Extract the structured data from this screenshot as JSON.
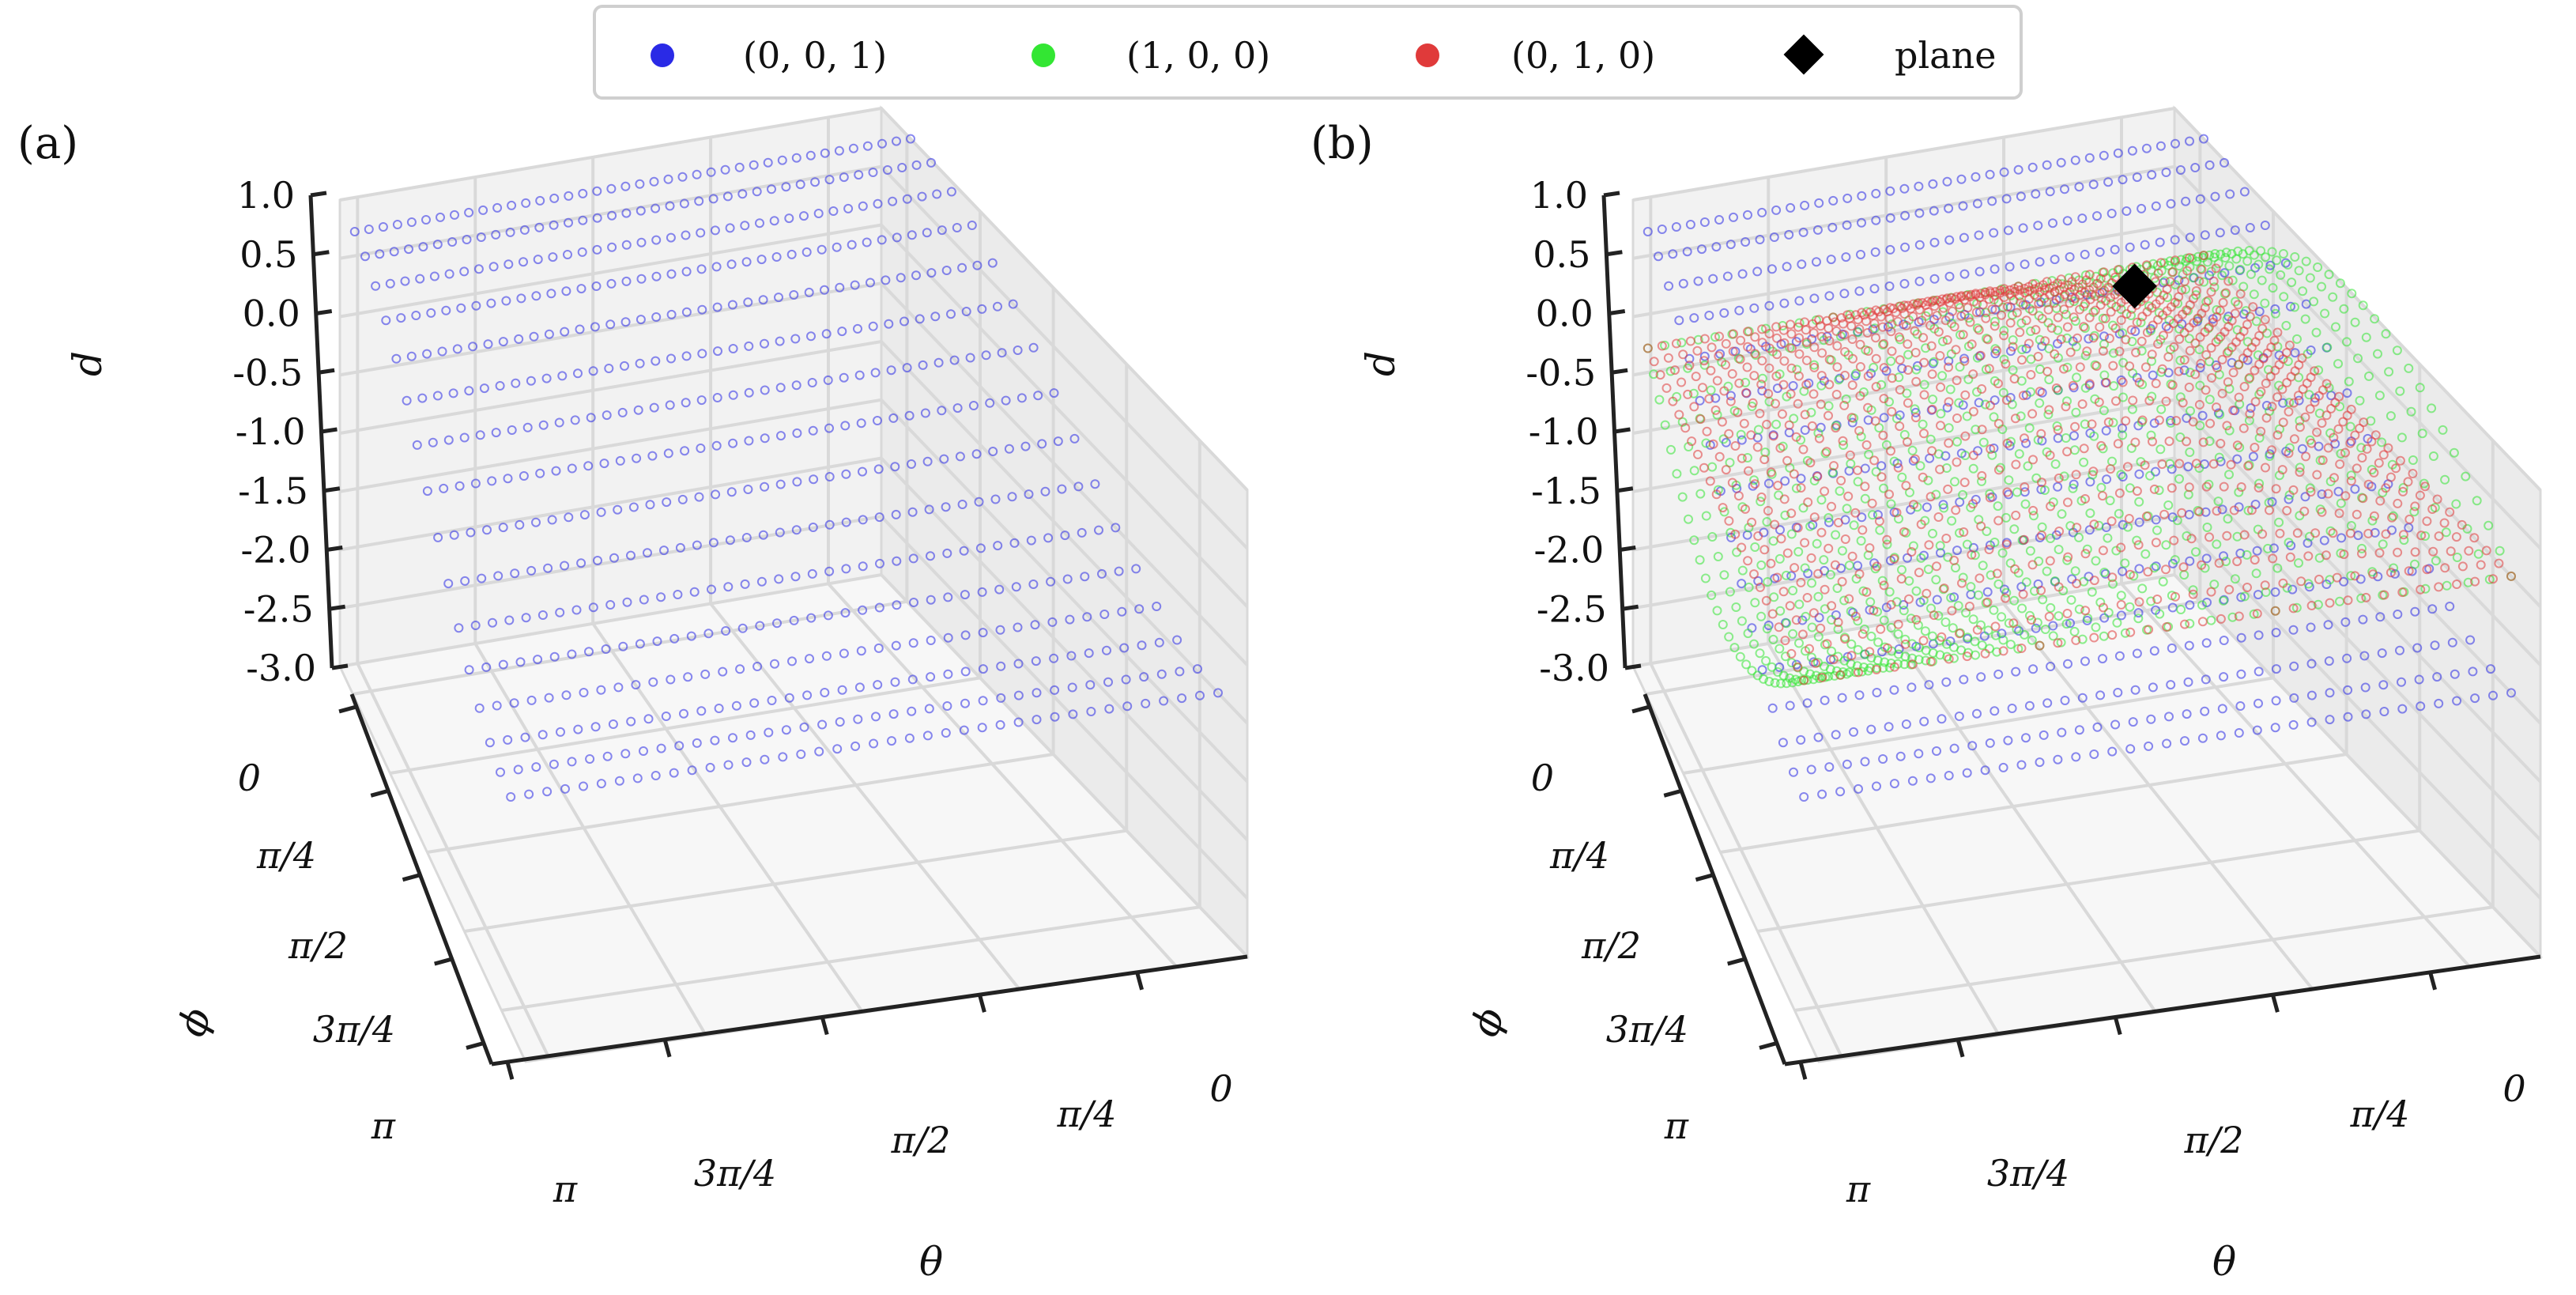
{
  "legend": {
    "entries": [
      {
        "label": "(0, 0, 1)",
        "marker": "circle",
        "color": "#2a2ae6"
      },
      {
        "label": "(1, 0, 0)",
        "marker": "circle",
        "color": "#33e633"
      },
      {
        "label": "(0, 1, 0)",
        "marker": "circle",
        "color": "#e03a3a"
      },
      {
        "label": "plane",
        "marker": "diamond",
        "color": "#000000"
      }
    ]
  },
  "chart_data": [
    {
      "type": "scatter3d",
      "panel_label": "(a)",
      "xlabel": "θ",
      "ylabel": "ϕ",
      "zlabel": "d",
      "x_ticks": [
        "π",
        "3π/4",
        "π/2",
        "π/4",
        "0"
      ],
      "y_ticks": [
        "0",
        "π/4",
        "π/2",
        "3π/4",
        "π"
      ],
      "z_ticks": [
        "1.0",
        "0.5",
        "0.0",
        "-0.5",
        "-1.0",
        "-1.5",
        "-2.0",
        "-2.5",
        "-3.0"
      ],
      "xlim": [
        0,
        3.1416
      ],
      "ylim": [
        0,
        3.1416
      ],
      "zlim": [
        -3.0,
        1.0
      ],
      "series": [
        {
          "name": "(0, 0, 1)",
          "color": "#2a2ae6",
          "function": "d = cos(phi)",
          "theta_range": [
            0,
            3.1416
          ],
          "phi_range": [
            0,
            3.1416
          ],
          "grid": [
            40,
            16
          ]
        }
      ]
    },
    {
      "type": "scatter3d",
      "panel_label": "(b)",
      "xlabel": "θ",
      "ylabel": "ϕ",
      "zlabel": "d",
      "x_ticks": [
        "π",
        "3π/4",
        "π/2",
        "π/4",
        "0"
      ],
      "y_ticks": [
        "0",
        "π/4",
        "π/2",
        "3π/4",
        "π"
      ],
      "z_ticks": [
        "1.0",
        "0.5",
        "0.0",
        "-0.5",
        "-1.0",
        "-1.5",
        "-2.0",
        "-2.5",
        "-3.0"
      ],
      "xlim": [
        0,
        3.1416
      ],
      "ylim": [
        0,
        3.1416
      ],
      "zlim": [
        -3.0,
        1.0
      ],
      "series": [
        {
          "name": "(0, 0, 1)",
          "color": "#2a2ae6",
          "function": "d = cos(phi)",
          "theta_range": [
            0,
            3.1416
          ],
          "phi_range": [
            0,
            3.1416
          ],
          "grid": [
            40,
            16
          ]
        },
        {
          "name": "(1, 0, 0)",
          "color": "#33e633",
          "function": "d = sin(phi)cos(theta)",
          "theta_range": [
            0,
            3.1416
          ],
          "phi_range": [
            0,
            3.1416
          ],
          "grid": [
            34,
            28
          ]
        },
        {
          "name": "(0, 1, 0)",
          "color": "#e03a3a",
          "function": "d = sin(phi)sin(theta)",
          "theta_range": [
            0,
            3.1416
          ],
          "phi_range": [
            0,
            3.1416
          ],
          "grid": [
            40,
            26
          ]
        },
        {
          "name": "plane",
          "color": "#000000",
          "marker": "diamond",
          "points": [
            {
              "theta": 0.5236,
              "phi": 0.2618,
              "d": 0.1
            }
          ]
        }
      ]
    }
  ]
}
